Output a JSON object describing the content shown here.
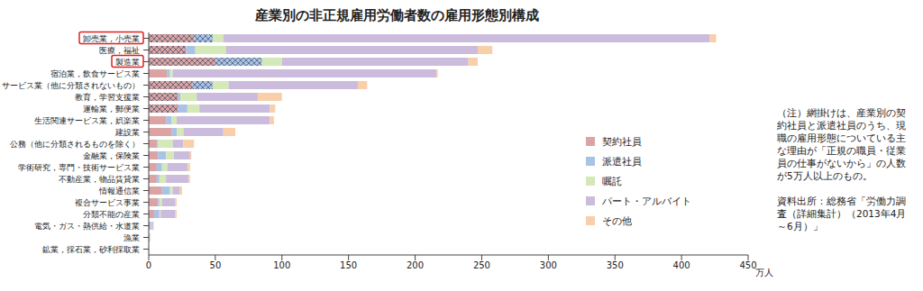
{
  "chart_data": {
    "type": "bar",
    "title": "産業別の非正規雇用労働者数の雇用形態別構成",
    "orientation": "horizontal",
    "stacked": true,
    "grid": false,
    "legend": "right",
    "x_label": "万人",
    "xlim": [
      0,
      450
    ],
    "xticks": [
      0,
      50,
      100,
      150,
      200,
      250,
      300,
      350,
      400,
      450
    ],
    "categories": [
      "卸売業，小売業",
      "医療，福祉",
      "製造業",
      "宿泊業，飲食サービス業",
      "サービス業（他に分類されないもの）",
      "教育，学習支援業",
      "運輸業，郵便業",
      "生活関連サービス業，娯楽業",
      "建設業",
      "公務（他に分類されるものを除く）",
      "金融業，保険業",
      "学術研究，専門・技術サービス業",
      "不動産業，物品賃貸業",
      "情報通信業",
      "複合サービス事業",
      "分類不能の産業",
      "電気・ガス・熱供給・水道業",
      "漁業",
      "鉱業，採石業，砂利採取業"
    ],
    "highlighted": [
      "卸売業，小売業",
      "製造業"
    ],
    "series": [
      {
        "name": "契約社員",
        "color": "#dba3a3",
        "values": [
          34,
          28,
          50,
          14,
          33,
          22,
          22,
          13,
          17,
          6,
          7,
          6,
          6,
          10,
          7,
          4,
          1,
          0.3,
          0.1
        ],
        "hatched": [
          true,
          true,
          true,
          false,
          true,
          true,
          true,
          false,
          false,
          false,
          false,
          false,
          false,
          false,
          false,
          false,
          false,
          false,
          false
        ]
      },
      {
        "name": "派遣社員",
        "color": "#a9c3e6",
        "values": [
          14,
          7,
          35,
          2,
          15,
          2,
          7,
          4,
          4,
          1,
          6,
          4,
          2,
          6,
          1,
          4,
          1,
          0,
          0
        ],
        "hatched": [
          true,
          false,
          true,
          false,
          true,
          false,
          false,
          false,
          false,
          false,
          false,
          false,
          false,
          false,
          false,
          false,
          false,
          false,
          false
        ]
      },
      {
        "name": "嘱託",
        "color": "#d5e8b8",
        "values": [
          8,
          23,
          15,
          2,
          12,
          12,
          9,
          4,
          5,
          11,
          6,
          4,
          5,
          2,
          2,
          1,
          0.5,
          0.1,
          0
        ]
      },
      {
        "name": "パート・アルバイト",
        "color": "#cbbbdc",
        "values": [
          365,
          189,
          140,
          198,
          97,
          46,
          53,
          70,
          30,
          8,
          12,
          15,
          17,
          5,
          10,
          11,
          1,
          0.6,
          0.1
        ]
      },
      {
        "name": "その他",
        "color": "#f9cfaa",
        "values": [
          5,
          11,
          7,
          1,
          7,
          18,
          4,
          3,
          9,
          8,
          1,
          2,
          1,
          2,
          1,
          1,
          0.2,
          0.1,
          0
        ]
      }
    ],
    "annotations": [
      "（注）網掛けは、産業別の契約社員と派遣社員のうち、現職の雇用形態についている主な理由が「正規の職員・従業員の仕事がないから」の人数が5万人以上のもの。",
      "資料出所：総務省「労働力調査（詳細集計）（2013年4月～6月）」"
    ]
  }
}
